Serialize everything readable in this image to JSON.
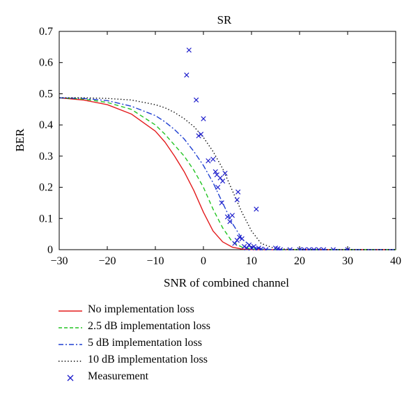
{
  "chart_data": {
    "type": "line",
    "title": "SR",
    "xlabel": "SNR of combined channel",
    "ylabel": "BER",
    "xlim": [
      -30,
      40
    ],
    "ylim": [
      0,
      0.7
    ],
    "x_ticks": [
      -30,
      -20,
      -10,
      0,
      10,
      20,
      30,
      40
    ],
    "y_ticks": [
      0,
      0.1,
      0.2,
      0.3,
      0.4,
      0.5,
      0.6,
      0.7
    ],
    "x_tick_labels": [
      "−30",
      "−20",
      "−10",
      "0",
      "10",
      "20",
      "30",
      "40"
    ],
    "y_tick_labels": [
      "0",
      "0.1",
      "0.2",
      "0.3",
      "0.4",
      "0.5",
      "0.6",
      "0.7"
    ],
    "grid": false,
    "legend_position": "below",
    "series": [
      {
        "name": "No implementation loss",
        "color": "#e31a1c",
        "style": "solid",
        "x": [
          -30,
          -25,
          -20,
          -15,
          -10,
          -8,
          -6,
          -4,
          -2,
          0,
          2,
          4,
          6,
          8,
          10,
          12,
          15,
          20,
          25,
          30,
          35,
          40
        ],
        "y": [
          0.487,
          0.48,
          0.465,
          0.435,
          0.38,
          0.345,
          0.3,
          0.25,
          0.19,
          0.12,
          0.06,
          0.025,
          0.008,
          0.002,
          0.0005,
          0,
          0,
          0,
          0,
          0,
          0,
          0
        ]
      },
      {
        "name": "2.5 dB implementation loss",
        "color": "#22c422",
        "style": "dashed",
        "x": [
          -30,
          -25,
          -20,
          -15,
          -10,
          -8,
          -6,
          -4,
          -2,
          0,
          2,
          4,
          6,
          8,
          10,
          12,
          15,
          20,
          25,
          30,
          35,
          40
        ],
        "y": [
          0.487,
          0.483,
          0.472,
          0.45,
          0.4,
          0.37,
          0.335,
          0.3,
          0.255,
          0.2,
          0.13,
          0.07,
          0.025,
          0.008,
          0.002,
          0.0005,
          0,
          0,
          0,
          0,
          0,
          0
        ]
      },
      {
        "name": "5 dB implementation loss",
        "color": "#1f3fd1",
        "style": "dashdot",
        "x": [
          -30,
          -25,
          -20,
          -15,
          -10,
          -8,
          -6,
          -4,
          -2,
          0,
          2,
          4,
          6,
          8,
          10,
          12,
          15,
          20,
          25,
          30,
          35,
          40
        ],
        "y": [
          0.487,
          0.485,
          0.478,
          0.46,
          0.43,
          0.41,
          0.385,
          0.355,
          0.315,
          0.27,
          0.215,
          0.15,
          0.085,
          0.035,
          0.01,
          0.002,
          0,
          0,
          0,
          0,
          0,
          0
        ]
      },
      {
        "name": "10 dB implementation loss",
        "color": "#000000",
        "style": "dotted",
        "x": [
          -30,
          -25,
          -20,
          -15,
          -10,
          -8,
          -6,
          -4,
          -2,
          0,
          2,
          4,
          6,
          8,
          10,
          12,
          15,
          20,
          25,
          30,
          35,
          40
        ],
        "y": [
          0.487,
          0.487,
          0.485,
          0.48,
          0.465,
          0.455,
          0.44,
          0.42,
          0.395,
          0.36,
          0.315,
          0.26,
          0.19,
          0.12,
          0.06,
          0.02,
          0.003,
          0,
          0,
          0,
          0,
          0
        ]
      },
      {
        "name": "Measurement",
        "color": "#1f1fcc",
        "style": "marker-x",
        "x": [
          -3,
          -3.5,
          -1.5,
          0,
          -0.5,
          -1,
          1,
          2,
          2.5,
          2.8,
          3,
          3.5,
          4,
          3.8,
          4.5,
          5,
          5.5,
          6,
          6.5,
          7,
          7.5,
          8,
          7.2,
          8.5,
          9,
          9.5,
          10,
          10.5,
          11,
          11.5,
          12,
          13,
          15,
          15.5,
          16,
          18,
          20,
          21,
          22,
          23,
          24,
          25,
          27,
          30,
          7,
          11
        ],
        "y": [
          0.64,
          0.56,
          0.48,
          0.42,
          0.37,
          0.365,
          0.285,
          0.29,
          0.25,
          0.24,
          0.2,
          0.23,
          0.22,
          0.15,
          0.245,
          0.105,
          0.09,
          0.11,
          0.02,
          0.03,
          0.04,
          0.035,
          0.185,
          0.01,
          0.005,
          0.015,
          0.005,
          0.01,
          0,
          0.005,
          0.002,
          0,
          0.005,
          0.003,
          0,
          0,
          0,
          0,
          0,
          0,
          0,
          0,
          0,
          0,
          0.16,
          0.13
        ]
      }
    ]
  }
}
